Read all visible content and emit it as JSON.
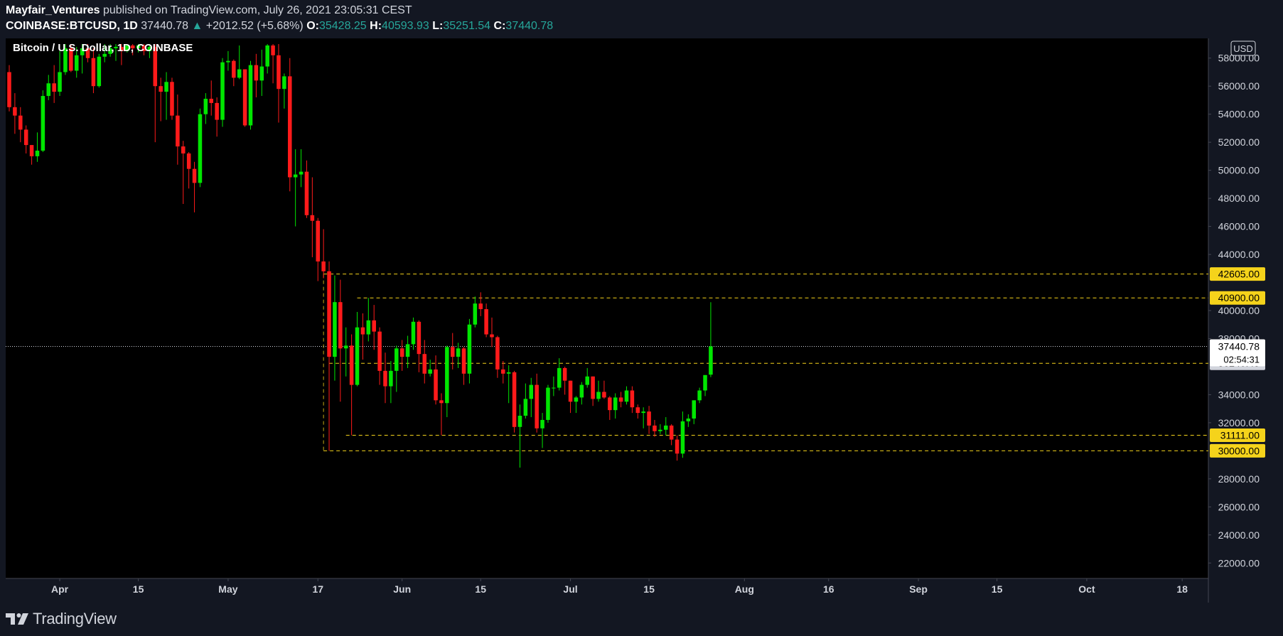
{
  "header": {
    "publisher": "Mayfair_Ventures",
    "published_text": "published on TradingView.com, July 26, 2021 23:05:31 CEST",
    "symbol": "COINBASE:BTCUSD, 1D",
    "last": "37440.78",
    "change": "+2012.52 (+5.68%)",
    "o_label": "O:",
    "o_value": "35428.25",
    "h_label": "H:",
    "h_value": "40593.93",
    "l_label": "L:",
    "l_value": "35251.54",
    "c_label": "C:",
    "c_value": "37440.78"
  },
  "footer": {
    "brand": "TradingView"
  },
  "colors": {
    "up": "#00e600",
    "down": "#ff1a1a",
    "level": "#f5d31b",
    "background": "#000000",
    "frame": "#131722"
  },
  "chart_data": {
    "type": "candlestick",
    "title": "Bitcoin / U.S. Dollar, 1D, COINBASE",
    "currency": "USD",
    "y_axis": {
      "min": 21000,
      "max": 59000,
      "ticks": [
        58000,
        56000,
        54000,
        52000,
        50000,
        48000,
        46000,
        44000,
        40000,
        38000,
        34000,
        32000,
        28000,
        26000,
        24000,
        22000
      ],
      "tick_labels": [
        "58000.00",
        "56000.00",
        "54000.00",
        "52000.00",
        "50000.00",
        "48000.00",
        "46000.00",
        "44000.00",
        "40000.00",
        "38000.00",
        "34000.00",
        "32000.00",
        "28000.00",
        "26000.00",
        "24000.00",
        "22000.00"
      ]
    },
    "x_axis": {
      "start_date": "2021-03-23",
      "end_date": "2021-10-29",
      "labels": [
        {
          "text": "Apr",
          "date": "2021-04-01"
        },
        {
          "text": "15",
          "date": "2021-04-15"
        },
        {
          "text": "May",
          "date": "2021-05-01"
        },
        {
          "text": "17",
          "date": "2021-05-17"
        },
        {
          "text": "Jun",
          "date": "2021-06-01"
        },
        {
          "text": "15",
          "date": "2021-06-15"
        },
        {
          "text": "Jul",
          "date": "2021-07-01"
        },
        {
          "text": "15",
          "date": "2021-07-15"
        },
        {
          "text": "Aug",
          "date": "2021-08-01"
        },
        {
          "text": "16",
          "date": "2021-08-16"
        },
        {
          "text": "Sep",
          "date": "2021-09-01"
        },
        {
          "text": "15",
          "date": "2021-09-15"
        },
        {
          "text": "Oct",
          "date": "2021-10-01"
        },
        {
          "text": "18",
          "date": "2021-10-18"
        }
      ]
    },
    "levels": [
      {
        "value": 42605,
        "label": "42605.00",
        "from": "2021-05-18"
      },
      {
        "value": 40900,
        "label": "40900.00",
        "from": "2021-05-24"
      },
      {
        "value": 36240.49,
        "label": "36240.49",
        "from": "2021-05-19"
      },
      {
        "value": 31111,
        "label": "31111.00",
        "from": "2021-05-22"
      },
      {
        "value": 30000,
        "label": "30000.00",
        "from": "2021-05-18"
      }
    ],
    "last_price": {
      "value": 37440.78,
      "label": "37440.78",
      "countdown": "02:54:31"
    },
    "candles": [
      {
        "date": "2021-03-23",
        "o": 57000,
        "h": 57500,
        "l": 54200,
        "c": 54500
      },
      {
        "date": "2021-03-24",
        "o": 54500,
        "h": 55500,
        "l": 52600,
        "c": 53900
      },
      {
        "date": "2021-03-25",
        "o": 53900,
        "h": 54500,
        "l": 52000,
        "c": 52900
      },
      {
        "date": "2021-03-26",
        "o": 52900,
        "h": 53200,
        "l": 51200,
        "c": 51800
      },
      {
        "date": "2021-03-27",
        "o": 51800,
        "h": 51800,
        "l": 50400,
        "c": 51000
      },
      {
        "date": "2021-03-28",
        "o": 51000,
        "h": 52700,
        "l": 50600,
        "c": 51400
      },
      {
        "date": "2021-03-29",
        "o": 51400,
        "h": 55700,
        "l": 51300,
        "c": 55300
      },
      {
        "date": "2021-03-30",
        "o": 55300,
        "h": 56800,
        "l": 55000,
        "c": 56200
      },
      {
        "date": "2021-03-31",
        "o": 56200,
        "h": 57500,
        "l": 54800,
        "c": 55600
      },
      {
        "date": "2021-04-01",
        "o": 55600,
        "h": 58500,
        "l": 55300,
        "c": 57000
      },
      {
        "date": "2021-04-02",
        "o": 57000,
        "h": 59000,
        "l": 56800,
        "c": 58700
      },
      {
        "date": "2021-04-03",
        "o": 58700,
        "h": 59000,
        "l": 57000,
        "c": 57100
      },
      {
        "date": "2021-04-04",
        "o": 57100,
        "h": 58800,
        "l": 56600,
        "c": 58200
      },
      {
        "date": "2021-04-05",
        "o": 58200,
        "h": 59000,
        "l": 56900,
        "c": 58700
      },
      {
        "date": "2021-04-06",
        "o": 58700,
        "h": 59000,
        "l": 57700,
        "c": 58000
      },
      {
        "date": "2021-04-07",
        "o": 58000,
        "h": 58700,
        "l": 55500,
        "c": 56000
      },
      {
        "date": "2021-04-08",
        "o": 56000,
        "h": 58300,
        "l": 55900,
        "c": 58100
      },
      {
        "date": "2021-04-09",
        "o": 58100,
        "h": 59000,
        "l": 57700,
        "c": 58300
      },
      {
        "date": "2021-04-10",
        "o": 58300,
        "h": 59000,
        "l": 58100,
        "c": 58700
      },
      {
        "date": "2021-04-11",
        "o": 58700,
        "h": 59000,
        "l": 57800,
        "c": 58800
      },
      {
        "date": "2021-04-12",
        "o": 58800,
        "h": 59000,
        "l": 57500,
        "c": 58500
      },
      {
        "date": "2021-04-13",
        "o": 58500,
        "h": 59000,
        "l": 58400,
        "c": 58900
      },
      {
        "date": "2021-04-14",
        "o": 58900,
        "h": 59000,
        "l": 58200,
        "c": 58700
      },
      {
        "date": "2021-04-15",
        "o": 58700,
        "h": 59000,
        "l": 58400,
        "c": 58900
      },
      {
        "date": "2021-04-16",
        "o": 58900,
        "h": 59000,
        "l": 58200,
        "c": 58500
      },
      {
        "date": "2021-04-17",
        "o": 58500,
        "h": 59000,
        "l": 58000,
        "c": 58800
      },
      {
        "date": "2021-04-18",
        "o": 58800,
        "h": 59000,
        "l": 52000,
        "c": 56000
      },
      {
        "date": "2021-04-19",
        "o": 56000,
        "h": 56600,
        "l": 53500,
        "c": 55600
      },
      {
        "date": "2021-04-20",
        "o": 55600,
        "h": 57000,
        "l": 53600,
        "c": 56300
      },
      {
        "date": "2021-04-21",
        "o": 56300,
        "h": 56600,
        "l": 53600,
        "c": 53900
      },
      {
        "date": "2021-04-22",
        "o": 53900,
        "h": 55400,
        "l": 50400,
        "c": 51700
      },
      {
        "date": "2021-04-23",
        "o": 51700,
        "h": 52100,
        "l": 47600,
        "c": 51200
      },
      {
        "date": "2021-04-24",
        "o": 51200,
        "h": 51300,
        "l": 48700,
        "c": 50100
      },
      {
        "date": "2021-04-25",
        "o": 50100,
        "h": 50600,
        "l": 47000,
        "c": 49100
      },
      {
        "date": "2021-04-26",
        "o": 49100,
        "h": 54400,
        "l": 48800,
        "c": 54000
      },
      {
        "date": "2021-04-27",
        "o": 54000,
        "h": 55500,
        "l": 53300,
        "c": 55100
      },
      {
        "date": "2021-04-28",
        "o": 55100,
        "h": 56400,
        "l": 53900,
        "c": 54800
      },
      {
        "date": "2021-04-29",
        "o": 54800,
        "h": 55200,
        "l": 52400,
        "c": 53600
      },
      {
        "date": "2021-04-30",
        "o": 53600,
        "h": 58000,
        "l": 53100,
        "c": 57700
      },
      {
        "date": "2021-05-01",
        "o": 57700,
        "h": 58500,
        "l": 57100,
        "c": 57800
      },
      {
        "date": "2021-05-02",
        "o": 57800,
        "h": 57900,
        "l": 56000,
        "c": 56600
      },
      {
        "date": "2021-05-03",
        "o": 56600,
        "h": 58900,
        "l": 56500,
        "c": 57200
      },
      {
        "date": "2021-05-04",
        "o": 57200,
        "h": 57200,
        "l": 53100,
        "c": 53200
      },
      {
        "date": "2021-05-05",
        "o": 53200,
        "h": 57800,
        "l": 52900,
        "c": 57500
      },
      {
        "date": "2021-05-06",
        "o": 57500,
        "h": 58300,
        "l": 55200,
        "c": 56400
      },
      {
        "date": "2021-05-07",
        "o": 56400,
        "h": 58600,
        "l": 55300,
        "c": 57400
      },
      {
        "date": "2021-05-08",
        "o": 57400,
        "h": 59000,
        "l": 56900,
        "c": 58900
      },
      {
        "date": "2021-05-09",
        "o": 58900,
        "h": 59000,
        "l": 56200,
        "c": 58200
      },
      {
        "date": "2021-05-10",
        "o": 58200,
        "h": 59000,
        "l": 53400,
        "c": 55800
      },
      {
        "date": "2021-05-11",
        "o": 55800,
        "h": 56900,
        "l": 54400,
        "c": 56700
      },
      {
        "date": "2021-05-12",
        "o": 56700,
        "h": 58000,
        "l": 48500,
        "c": 49500
      },
      {
        "date": "2021-05-13",
        "o": 49500,
        "h": 51500,
        "l": 46000,
        "c": 49700
      },
      {
        "date": "2021-05-14",
        "o": 49700,
        "h": 51500,
        "l": 48800,
        "c": 49900
      },
      {
        "date": "2021-05-15",
        "o": 49900,
        "h": 50700,
        "l": 46600,
        "c": 46800
      },
      {
        "date": "2021-05-16",
        "o": 46800,
        "h": 49500,
        "l": 43800,
        "c": 46400
      },
      {
        "date": "2021-05-17",
        "o": 46400,
        "h": 46600,
        "l": 42100,
        "c": 43500
      },
      {
        "date": "2021-05-18",
        "o": 43500,
        "h": 45800,
        "l": 42300,
        "c": 42800
      },
      {
        "date": "2021-05-19",
        "o": 42800,
        "h": 43500,
        "l": 30000,
        "c": 36700
      },
      {
        "date": "2021-05-20",
        "o": 36700,
        "h": 42500,
        "l": 35000,
        "c": 40600
      },
      {
        "date": "2021-05-21",
        "o": 40600,
        "h": 42200,
        "l": 33500,
        "c": 37300
      },
      {
        "date": "2021-05-22",
        "o": 37300,
        "h": 38800,
        "l": 35300,
        "c": 37500
      },
      {
        "date": "2021-05-23",
        "o": 37500,
        "h": 38300,
        "l": 31111,
        "c": 34700
      },
      {
        "date": "2021-05-24",
        "o": 34700,
        "h": 39900,
        "l": 34600,
        "c": 38800
      },
      {
        "date": "2021-05-25",
        "o": 38800,
        "h": 39800,
        "l": 36500,
        "c": 38300
      },
      {
        "date": "2021-05-26",
        "o": 38300,
        "h": 40900,
        "l": 37800,
        "c": 39300
      },
      {
        "date": "2021-05-27",
        "o": 39300,
        "h": 40400,
        "l": 37200,
        "c": 38500
      },
      {
        "date": "2021-05-28",
        "o": 38500,
        "h": 38800,
        "l": 34700,
        "c": 35700
      },
      {
        "date": "2021-05-29",
        "o": 35700,
        "h": 37000,
        "l": 33400,
        "c": 34600
      },
      {
        "date": "2021-05-30",
        "o": 34600,
        "h": 36400,
        "l": 33400,
        "c": 35700
      },
      {
        "date": "2021-05-31",
        "o": 35700,
        "h": 37500,
        "l": 34200,
        "c": 37300
      },
      {
        "date": "2021-06-01",
        "o": 37300,
        "h": 37900,
        "l": 35700,
        "c": 36700
      },
      {
        "date": "2021-06-02",
        "o": 36700,
        "h": 38200,
        "l": 35900,
        "c": 37600
      },
      {
        "date": "2021-06-03",
        "o": 37600,
        "h": 39500,
        "l": 37200,
        "c": 39200
      },
      {
        "date": "2021-06-04",
        "o": 39200,
        "h": 39300,
        "l": 35600,
        "c": 36900
      },
      {
        "date": "2021-06-05",
        "o": 36900,
        "h": 37900,
        "l": 34800,
        "c": 35500
      },
      {
        "date": "2021-06-06",
        "o": 35500,
        "h": 36500,
        "l": 35300,
        "c": 35800
      },
      {
        "date": "2021-06-07",
        "o": 35800,
        "h": 36800,
        "l": 33300,
        "c": 33600
      },
      {
        "date": "2021-06-08",
        "o": 33600,
        "h": 34100,
        "l": 31111,
        "c": 33400
      },
      {
        "date": "2021-06-09",
        "o": 33400,
        "h": 37500,
        "l": 32400,
        "c": 37400
      },
      {
        "date": "2021-06-10",
        "o": 37400,
        "h": 38400,
        "l": 35800,
        "c": 36700
      },
      {
        "date": "2021-06-11",
        "o": 36700,
        "h": 37700,
        "l": 35900,
        "c": 37300
      },
      {
        "date": "2021-06-12",
        "o": 37300,
        "h": 37400,
        "l": 34700,
        "c": 35500
      },
      {
        "date": "2021-06-13",
        "o": 35500,
        "h": 39400,
        "l": 34800,
        "c": 39000
      },
      {
        "date": "2021-06-14",
        "o": 39000,
        "h": 41000,
        "l": 38800,
        "c": 40500
      },
      {
        "date": "2021-06-15",
        "o": 40500,
        "h": 41300,
        "l": 39600,
        "c": 40100
      },
      {
        "date": "2021-06-16",
        "o": 40100,
        "h": 40500,
        "l": 38100,
        "c": 38300
      },
      {
        "date": "2021-06-17",
        "o": 38300,
        "h": 39500,
        "l": 37400,
        "c": 38100
      },
      {
        "date": "2021-06-18",
        "o": 38100,
        "h": 38200,
        "l": 35200,
        "c": 35800
      },
      {
        "date": "2021-06-19",
        "o": 35800,
        "h": 36400,
        "l": 34800,
        "c": 35500
      },
      {
        "date": "2021-06-20",
        "o": 35500,
        "h": 36100,
        "l": 33400,
        "c": 35600
      },
      {
        "date": "2021-06-21",
        "o": 35600,
        "h": 35700,
        "l": 31300,
        "c": 31700
      },
      {
        "date": "2021-06-22",
        "o": 31700,
        "h": 33300,
        "l": 28800,
        "c": 32500
      },
      {
        "date": "2021-06-23",
        "o": 32500,
        "h": 34800,
        "l": 32300,
        "c": 33700
      },
      {
        "date": "2021-06-24",
        "o": 33700,
        "h": 35200,
        "l": 32400,
        "c": 34700
      },
      {
        "date": "2021-06-25",
        "o": 34700,
        "h": 35500,
        "l": 31300,
        "c": 31600
      },
      {
        "date": "2021-06-26",
        "o": 31600,
        "h": 32700,
        "l": 30200,
        "c": 32200
      },
      {
        "date": "2021-06-27",
        "o": 32200,
        "h": 34700,
        "l": 32000,
        "c": 34500
      },
      {
        "date": "2021-06-28",
        "o": 34500,
        "h": 35300,
        "l": 33900,
        "c": 34500
      },
      {
        "date": "2021-06-29",
        "o": 34500,
        "h": 36600,
        "l": 34300,
        "c": 35900
      },
      {
        "date": "2021-06-30",
        "o": 35900,
        "h": 36000,
        "l": 34000,
        "c": 35000
      },
      {
        "date": "2021-07-01",
        "o": 35000,
        "h": 35000,
        "l": 32700,
        "c": 33500
      },
      {
        "date": "2021-07-02",
        "o": 33500,
        "h": 33900,
        "l": 32700,
        "c": 33800
      },
      {
        "date": "2021-07-03",
        "o": 33800,
        "h": 34900,
        "l": 33300,
        "c": 34700
      },
      {
        "date": "2021-07-04",
        "o": 34700,
        "h": 35900,
        "l": 34500,
        "c": 35300
      },
      {
        "date": "2021-07-05",
        "o": 35300,
        "h": 35300,
        "l": 33200,
        "c": 33700
      },
      {
        "date": "2021-07-06",
        "o": 33700,
        "h": 35000,
        "l": 33500,
        "c": 34200
      },
      {
        "date": "2021-07-07",
        "o": 34200,
        "h": 35000,
        "l": 33700,
        "c": 33800
      },
      {
        "date": "2021-07-08",
        "o": 33800,
        "h": 33900,
        "l": 32200,
        "c": 32900
      },
      {
        "date": "2021-07-09",
        "o": 32900,
        "h": 34100,
        "l": 32300,
        "c": 33800
      },
      {
        "date": "2021-07-10",
        "o": 33800,
        "h": 34200,
        "l": 33100,
        "c": 33500
      },
      {
        "date": "2021-07-11",
        "o": 33500,
        "h": 34600,
        "l": 33300,
        "c": 34300
      },
      {
        "date": "2021-07-12",
        "o": 34300,
        "h": 34600,
        "l": 32700,
        "c": 33100
      },
      {
        "date": "2021-07-13",
        "o": 33100,
        "h": 33300,
        "l": 32300,
        "c": 32700
      },
      {
        "date": "2021-07-14",
        "o": 32700,
        "h": 33100,
        "l": 31600,
        "c": 32800
      },
      {
        "date": "2021-07-15",
        "o": 32800,
        "h": 33200,
        "l": 31200,
        "c": 31800
      },
      {
        "date": "2021-07-16",
        "o": 31800,
        "h": 32200,
        "l": 31000,
        "c": 31400
      },
      {
        "date": "2021-07-17",
        "o": 31400,
        "h": 31900,
        "l": 31200,
        "c": 31500
      },
      {
        "date": "2021-07-18",
        "o": 31500,
        "h": 32400,
        "l": 31100,
        "c": 31800
      },
      {
        "date": "2021-07-19",
        "o": 31800,
        "h": 31900,
        "l": 30400,
        "c": 30800
      },
      {
        "date": "2021-07-20",
        "o": 30800,
        "h": 31100,
        "l": 29300,
        "c": 29800
      },
      {
        "date": "2021-07-21",
        "o": 29800,
        "h": 32800,
        "l": 29500,
        "c": 32100
      },
      {
        "date": "2021-07-22",
        "o": 32100,
        "h": 32600,
        "l": 31700,
        "c": 32300
      },
      {
        "date": "2021-07-23",
        "o": 32300,
        "h": 33600,
        "l": 31900,
        "c": 33600
      },
      {
        "date": "2021-07-24",
        "o": 33600,
        "h": 34500,
        "l": 33400,
        "c": 34300
      },
      {
        "date": "2021-07-25",
        "o": 34300,
        "h": 35400,
        "l": 33900,
        "c": 35400
      },
      {
        "date": "2021-07-26",
        "o": 35428.25,
        "h": 40593.93,
        "l": 35251.54,
        "c": 37440.78
      }
    ]
  }
}
